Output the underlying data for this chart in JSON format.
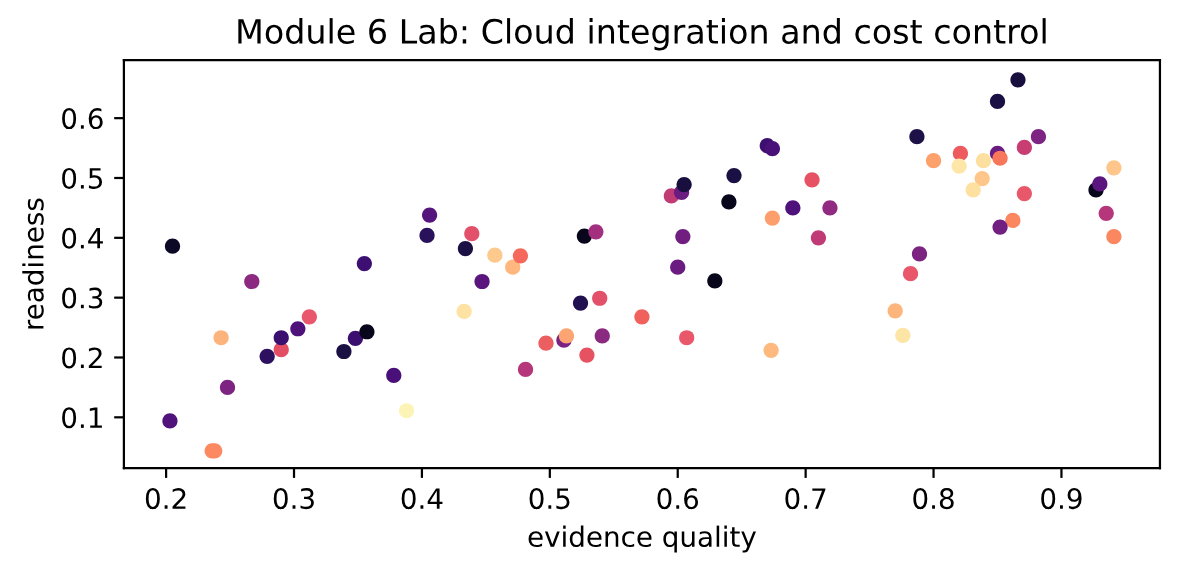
{
  "chart_data": {
    "type": "scatter",
    "title": "Module 6 Lab: Cloud integration and cost control",
    "xlabel": "evidence quality",
    "ylabel": "readiness",
    "xlim": [
      0.167,
      0.977
    ],
    "ylim": [
      0.015,
      0.697
    ],
    "xticks": [
      0.2,
      0.3,
      0.4,
      0.5,
      0.6,
      0.7,
      0.8,
      0.9
    ],
    "yticks": [
      0.1,
      0.2,
      0.3,
      0.4,
      0.5,
      0.6
    ],
    "grid": false,
    "marker": "circle",
    "series": [
      {
        "x": [
          0.205,
          0.267,
          0.243,
          0.203,
          0.248,
          0.236,
          0.238,
          0.279,
          0.29,
          0.29,
          0.303,
          0.312,
          0.339,
          0.348,
          0.357,
          0.355,
          0.378,
          0.388,
          0.406,
          0.404,
          0.434,
          0.439,
          0.433,
          0.447,
          0.457,
          0.471,
          0.477,
          0.481,
          0.497,
          0.511,
          0.513,
          0.524,
          0.527,
          0.536,
          0.539,
          0.529,
          0.541,
          0.572,
          0.607,
          0.6,
          0.604,
          0.595,
          0.603,
          0.605,
          0.629,
          0.64,
          0.644,
          0.67,
          0.674,
          0.674,
          0.673,
          0.69,
          0.705,
          0.719,
          0.71,
          0.77,
          0.776,
          0.782,
          0.789,
          0.787,
          0.8,
          0.821,
          0.82,
          0.839,
          0.838,
          0.831,
          0.85,
          0.852,
          0.85,
          0.866,
          0.871,
          0.882,
          0.871,
          0.862,
          0.852,
          0.927,
          0.93,
          0.941,
          0.935,
          0.941
        ],
        "values": [
          0.386,
          0.327,
          0.233,
          0.094,
          0.15,
          0.044,
          0.044,
          0.202,
          0.213,
          0.233,
          0.248,
          0.268,
          0.21,
          0.232,
          0.243,
          0.357,
          0.17,
          0.111,
          0.438,
          0.404,
          0.382,
          0.407,
          0.277,
          0.327,
          0.371,
          0.351,
          0.37,
          0.18,
          0.224,
          0.229,
          0.236,
          0.291,
          0.403,
          0.41,
          0.299,
          0.204,
          0.236,
          0.268,
          0.233,
          0.351,
          0.402,
          0.47,
          0.476,
          0.489,
          0.328,
          0.46,
          0.504,
          0.554,
          0.549,
          0.433,
          0.212,
          0.45,
          0.497,
          0.45,
          0.4,
          0.278,
          0.237,
          0.34,
          0.373,
          0.569,
          0.529,
          0.541,
          0.52,
          0.529,
          0.499,
          0.48,
          0.541,
          0.533,
          0.628,
          0.664,
          0.551,
          0.569,
          0.474,
          0.429,
          0.418,
          0.48,
          0.49,
          0.517,
          0.441,
          0.402
        ],
        "colors": [
          "#0c0926",
          "#8c2981",
          "#fdb47c",
          "#51127c",
          "#7d2482",
          "#fc8961",
          "#fc8961",
          "#2d1160",
          "#e34e65",
          "#3b0f70",
          "#4f127b",
          "#e8576b",
          "#1b1044",
          "#3b0f70",
          "#08061b",
          "#3e0f72",
          "#4a1079",
          "#fcf4b6",
          "#56147d",
          "#2a115c",
          "#1c1044",
          "#e3506a",
          "#fde2a3",
          "#5a167e",
          "#fec98d",
          "#feb77e",
          "#f4695c",
          "#b5367a",
          "#ec5f61",
          "#7b2382",
          "#fca572",
          "#221150",
          "#08061b",
          "#a3307e",
          "#e3506a",
          "#e75263",
          "#8a2a80",
          "#f0605d",
          "#e8586a",
          "#6a1c81",
          "#701f81",
          "#c13b75",
          "#6a1c81",
          "#180f3e",
          "#08061b",
          "#08061b",
          "#1b1044",
          "#3c0f70",
          "#4a1079",
          "#fd9f6c",
          "#feb97f",
          "#4f127b",
          "#e65164",
          "#912b81",
          "#c03a76",
          "#feb57c",
          "#fde5a5",
          "#e8586a",
          "#7c2382",
          "#1e1148",
          "#fca06c",
          "#ee5b5e",
          "#fde6a7",
          "#fde0a0",
          "#fec68a",
          "#fee0a0",
          "#6a1c81",
          "#f8765c",
          "#1b1044",
          "#180f3e",
          "#c83e73",
          "#7d2482",
          "#e8586a",
          "#fb8761",
          "#711f81",
          "#08061b",
          "#5a167e",
          "#fec68a",
          "#b5367a",
          "#fb8761"
        ]
      }
    ]
  }
}
